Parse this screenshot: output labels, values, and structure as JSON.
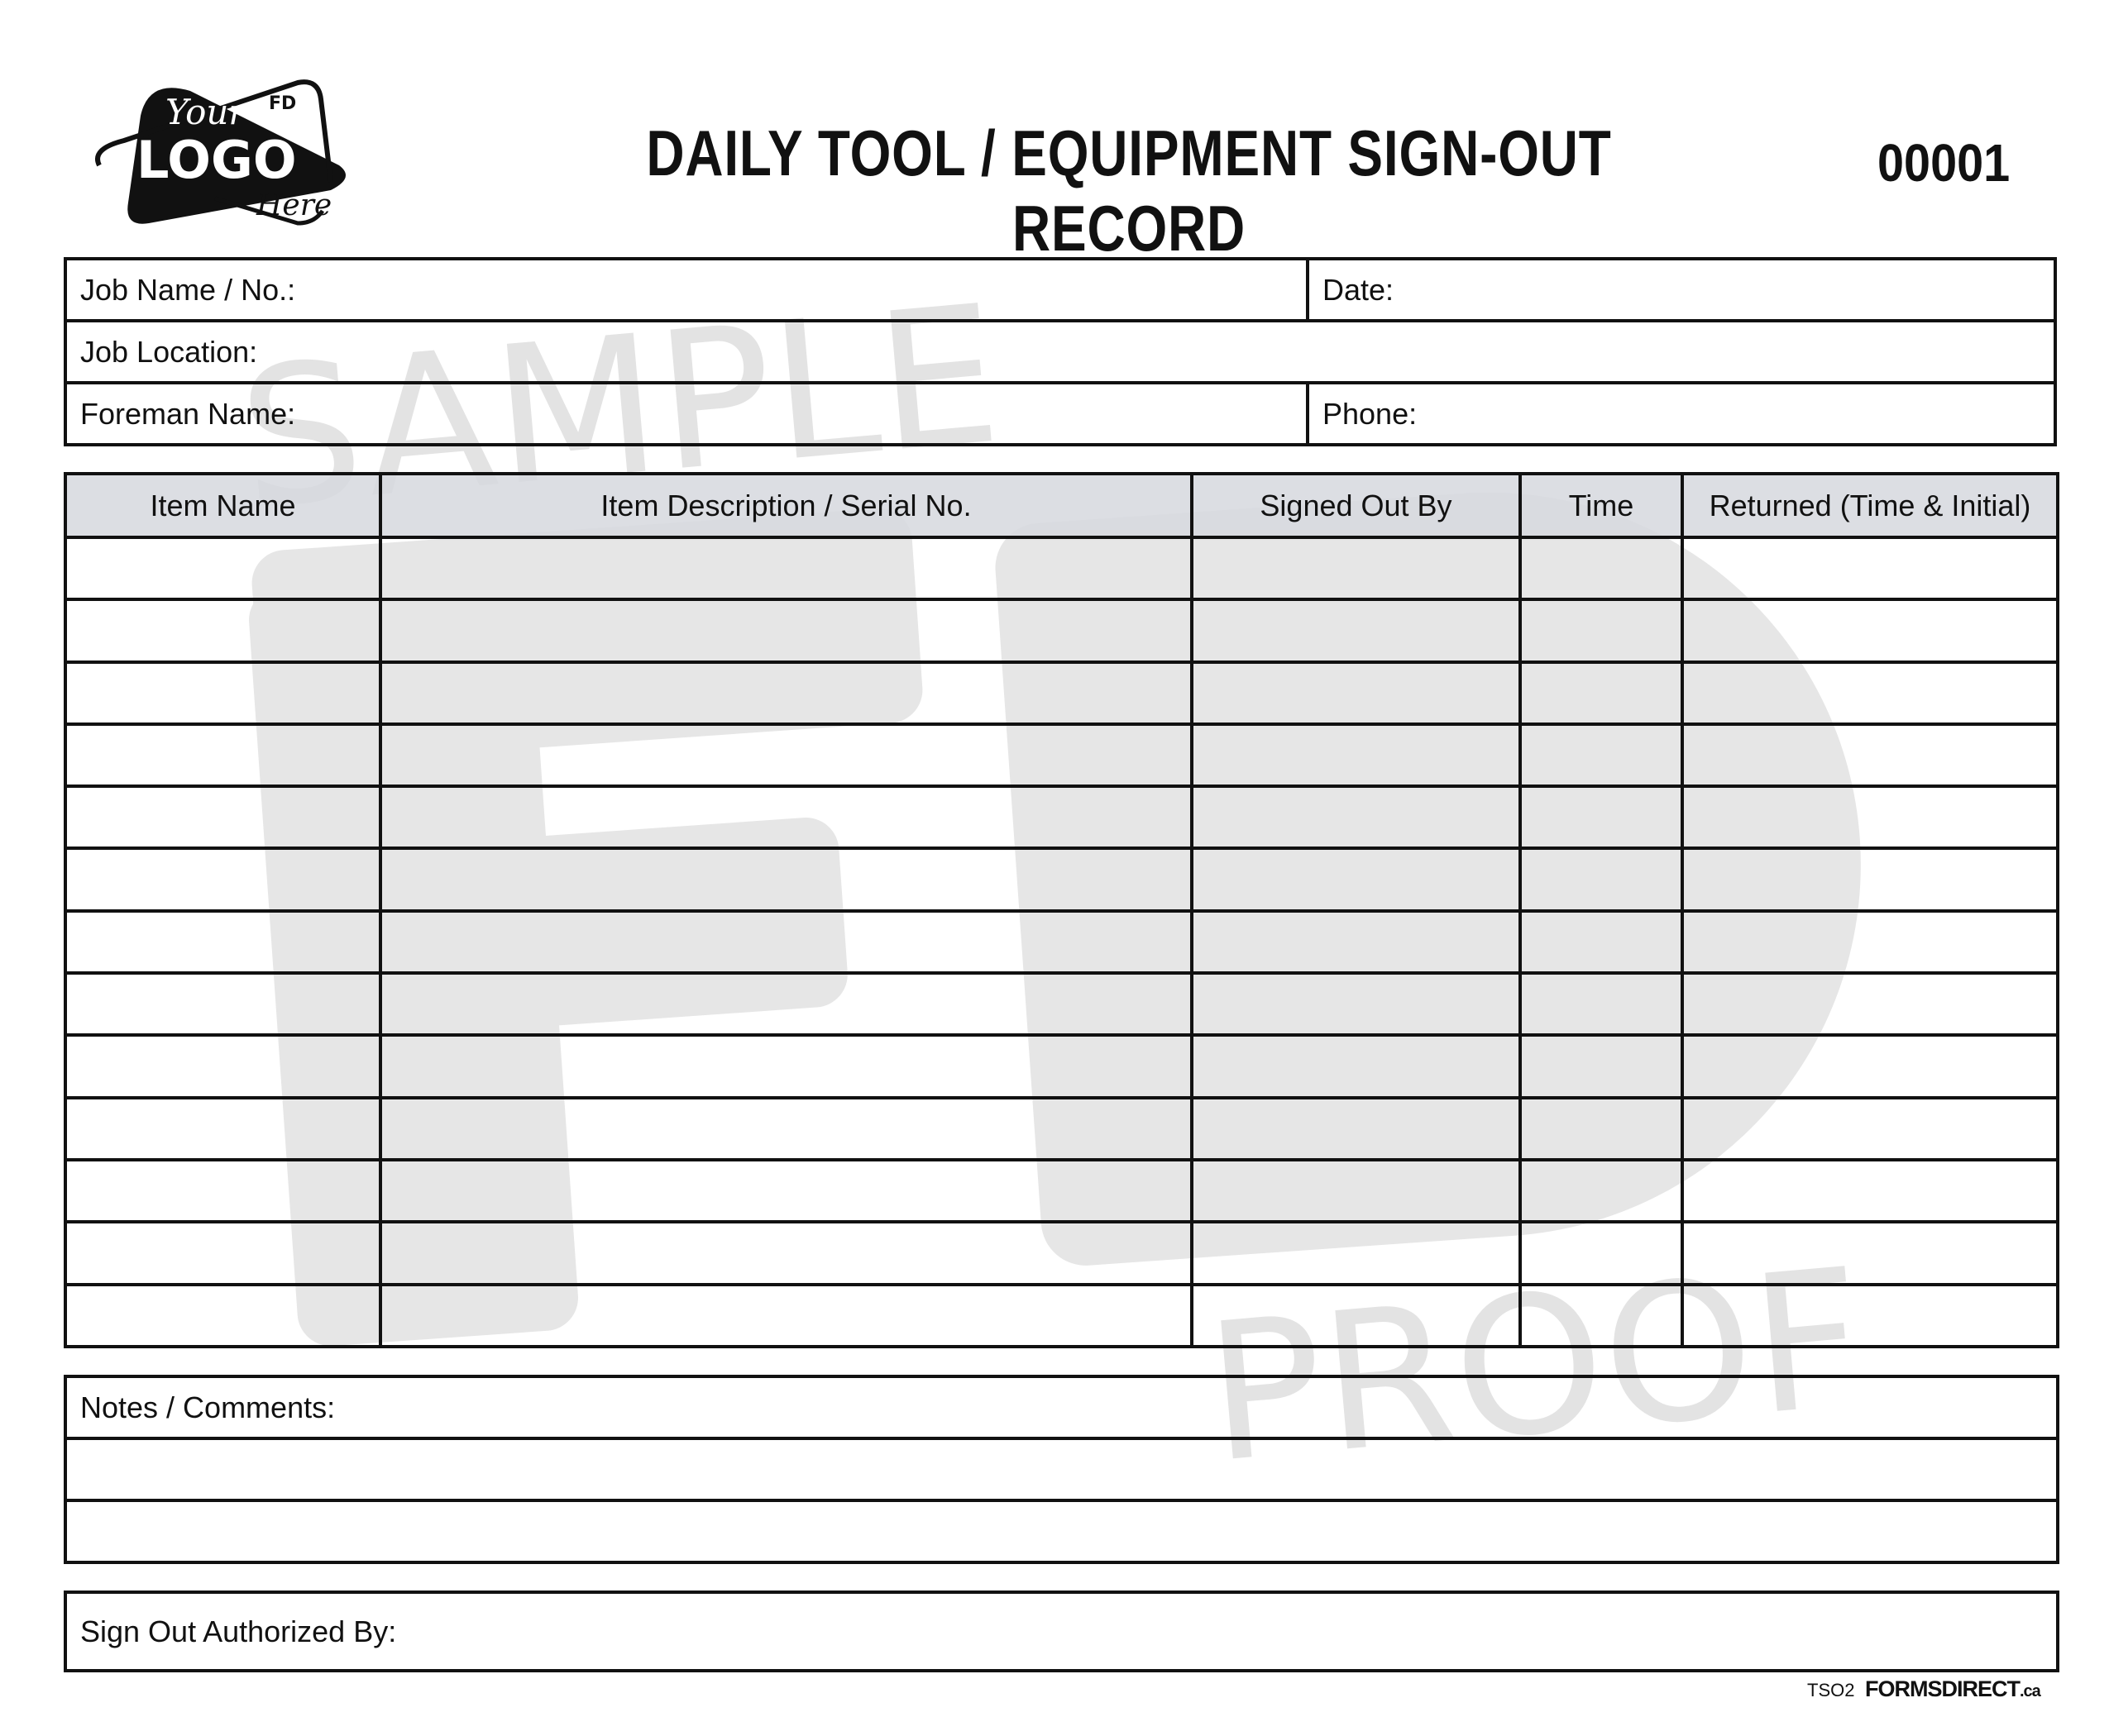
{
  "header": {
    "title": "DAILY TOOL / EQUIPMENT SIGN-OUT RECORD",
    "form_number": "00001",
    "logo": {
      "line1": "Your",
      "line2": "LOGO",
      "line3": "Here",
      "badge": "FD"
    }
  },
  "info": {
    "job_name": "Job Name / No.:",
    "date": "Date:",
    "job_location": "Job Location:",
    "foreman": "Foreman Name:",
    "phone": "Phone:"
  },
  "table": {
    "columns": [
      "Item Name",
      "Item Description / Serial No.",
      "Signed Out By",
      "Time",
      "Returned (Time & Initial)"
    ],
    "row_count": 13
  },
  "notes": {
    "label": "Notes / Comments:"
  },
  "authorization": {
    "label": "Sign Out Authorized By:"
  },
  "watermark": {
    "top": "SAMPLE",
    "bottom": "PROOF"
  },
  "footer": {
    "code": "TSO2",
    "brand": "FORMSDIRECT",
    "brand_suffix": ".ca"
  }
}
